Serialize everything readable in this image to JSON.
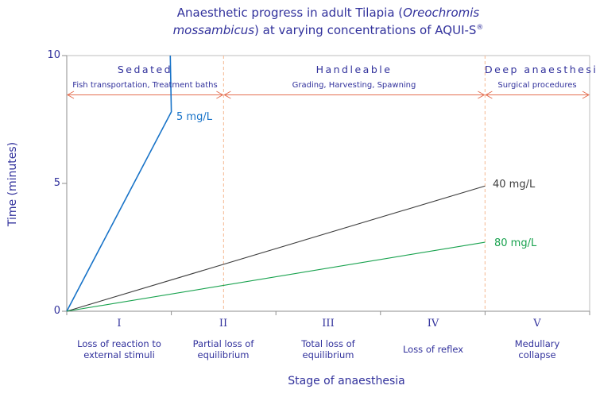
{
  "title": {
    "line1_pre": "Anaesthetic progress in adult Tilapia (",
    "line1_italic": "Oreochromis",
    "line2_italic": "mossambicus",
    "line2_post": ") at varying concentrations of AQUI-S",
    "line2_sup": "®"
  },
  "chart_data": {
    "type": "line",
    "title": "Anaesthetic progress in adult Tilapia (Oreochromis mossambicus) at varying concentrations of AQUI-S®",
    "xlabel": "Stage of anaesthesia",
    "ylabel": "Time (minutes)",
    "ylim": [
      0,
      10
    ],
    "x_axis_note": "x in anaesthesia-stage units; stage I spans 0-1, II 1-2, III 2-3, IV 3-4, V 4-5",
    "yticks": [
      0,
      5,
      10
    ],
    "ytick_labels": {
      "t10": "10",
      "t5": "5",
      "t0": "0"
    },
    "xticks": [
      1,
      2,
      3,
      4,
      5
    ],
    "grid": false,
    "stages": [
      {
        "numeral": "I",
        "label": "Loss of reaction to\nexternal stimuli"
      },
      {
        "numeral": "II",
        "label": "Partial loss of\nequilibrium"
      },
      {
        "numeral": "III",
        "label": "Total loss of\nequilibrium"
      },
      {
        "numeral": "IV",
        "label": "Loss of reflex"
      },
      {
        "numeral": "V",
        "label": "Medullary\ncollapse"
      }
    ],
    "regions": [
      {
        "name": "Sedated",
        "sublabel": "Fish transportation, Treatment baths",
        "from": 0,
        "to": 1.5
      },
      {
        "name": "Handleable",
        "sublabel": "Grading, Harvesting, Spawning",
        "from": 1.5,
        "to": 4
      },
      {
        "name": "Deep anaesthesia",
        "sublabel": "Surgical procedures",
        "from": 4,
        "to": 5
      }
    ],
    "series": [
      {
        "name": "5 mg/L",
        "color": "#1873c8",
        "points": [
          [
            0,
            0
          ],
          [
            1,
            7.8
          ],
          [
            0.99,
            10
          ]
        ]
      },
      {
        "name": "40 mg/L",
        "color": "#3d3d3d",
        "points": [
          [
            0,
            0
          ],
          [
            4,
            4.9
          ]
        ]
      },
      {
        "name": "80 mg/L",
        "color": "#18a24e",
        "points": [
          [
            0,
            0
          ],
          [
            4,
            2.7
          ]
        ]
      }
    ],
    "colors": {
      "text_navy": "#31319c",
      "region_arrow": "#e46e50",
      "boundary_dash": "#f6c3a3",
      "frame": "#bcbcbc",
      "axis": "#8e8e8e"
    }
  }
}
